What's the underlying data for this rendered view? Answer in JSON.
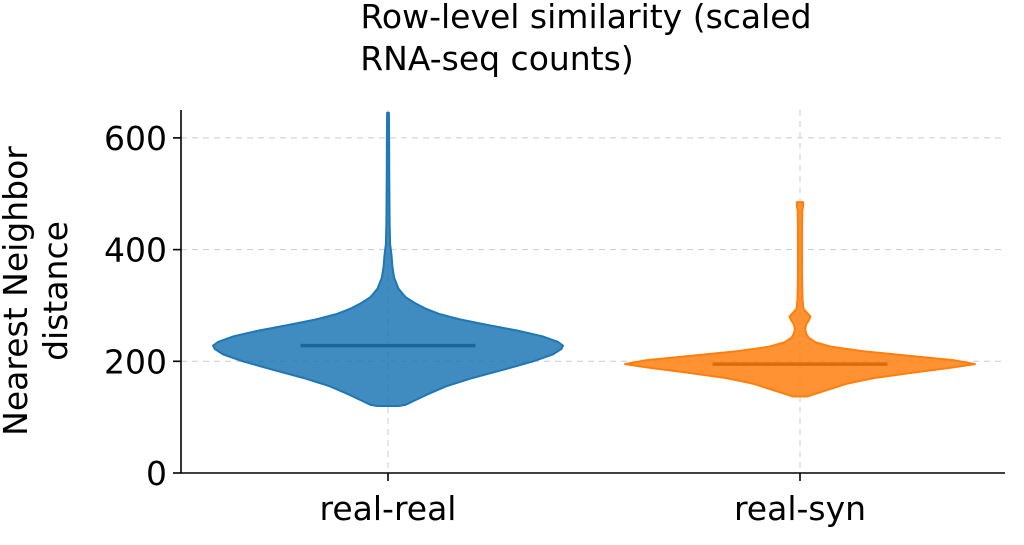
{
  "chart_data": {
    "type": "violin",
    "title_lines": [
      "Row-level similarity (scaled",
      "RNA-seq counts)"
    ],
    "xlabel": "",
    "ylabel_lines": [
      "Nearest Neighbor",
      "distance"
    ],
    "categories": [
      "real-real",
      "real-syn"
    ],
    "ylim": [
      0,
      650
    ],
    "yticks": [
      0,
      200,
      400,
      600
    ],
    "grid": true,
    "series": [
      {
        "category": "real-real",
        "color": "#1f77b4",
        "min": 120,
        "max": 645,
        "median": 228,
        "density_profile": [
          [
            120,
            0.06
          ],
          [
            122,
            0.1
          ],
          [
            128,
            0.14
          ],
          [
            140,
            0.22
          ],
          [
            155,
            0.33
          ],
          [
            170,
            0.48
          ],
          [
            185,
            0.66
          ],
          [
            200,
            0.83
          ],
          [
            212,
            0.94
          ],
          [
            222,
            0.99
          ],
          [
            228,
            1.0
          ],
          [
            235,
            0.97
          ],
          [
            245,
            0.88
          ],
          [
            255,
            0.74
          ],
          [
            265,
            0.57
          ],
          [
            275,
            0.41
          ],
          [
            285,
            0.29
          ],
          [
            295,
            0.21
          ],
          [
            305,
            0.15
          ],
          [
            315,
            0.1
          ],
          [
            330,
            0.06
          ],
          [
            350,
            0.035
          ],
          [
            370,
            0.025
          ],
          [
            390,
            0.02
          ],
          [
            410,
            0.012
          ],
          [
            450,
            0.009
          ],
          [
            500,
            0.008
          ],
          [
            550,
            0.007
          ],
          [
            600,
            0.006
          ],
          [
            645,
            0.005
          ]
        ]
      },
      {
        "category": "real-syn",
        "color": "#ff7f0e",
        "min": 137,
        "max": 485,
        "median": 195,
        "density_profile": [
          [
            137,
            0.04
          ],
          [
            142,
            0.09
          ],
          [
            150,
            0.17
          ],
          [
            160,
            0.27
          ],
          [
            170,
            0.42
          ],
          [
            180,
            0.65
          ],
          [
            188,
            0.85
          ],
          [
            195,
            1.0
          ],
          [
            202,
            0.88
          ],
          [
            210,
            0.62
          ],
          [
            218,
            0.36
          ],
          [
            226,
            0.18
          ],
          [
            234,
            0.09
          ],
          [
            242,
            0.05
          ],
          [
            250,
            0.035
          ],
          [
            258,
            0.03
          ],
          [
            266,
            0.035
          ],
          [
            273,
            0.05
          ],
          [
            280,
            0.06
          ],
          [
            287,
            0.04
          ],
          [
            294,
            0.02
          ],
          [
            310,
            0.014
          ],
          [
            350,
            0.012
          ],
          [
            400,
            0.012
          ],
          [
            440,
            0.012
          ],
          [
            470,
            0.013
          ],
          [
            478,
            0.018
          ],
          [
            485,
            0.018
          ]
        ]
      }
    ]
  }
}
